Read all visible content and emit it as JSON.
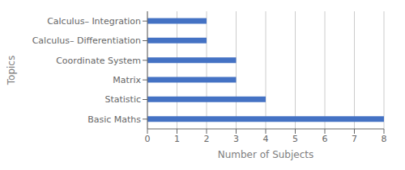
{
  "chart_data": {
    "type": "bar",
    "orientation": "horizontal",
    "categories": [
      "Basic Maths",
      "Statistic",
      "Matrix",
      "Coordinate System",
      "Calculus– Differentiation",
      "Calculus– Integration"
    ],
    "values": [
      8,
      4,
      3,
      3,
      2,
      2
    ],
    "color": "#4472C4",
    "xlabel": "Number of Subjects",
    "ylabel": "Topics",
    "xlim": [
      0,
      8
    ],
    "xticks": [
      0,
      1,
      2,
      3,
      4,
      5,
      6,
      7,
      8
    ],
    "grid": true
  }
}
